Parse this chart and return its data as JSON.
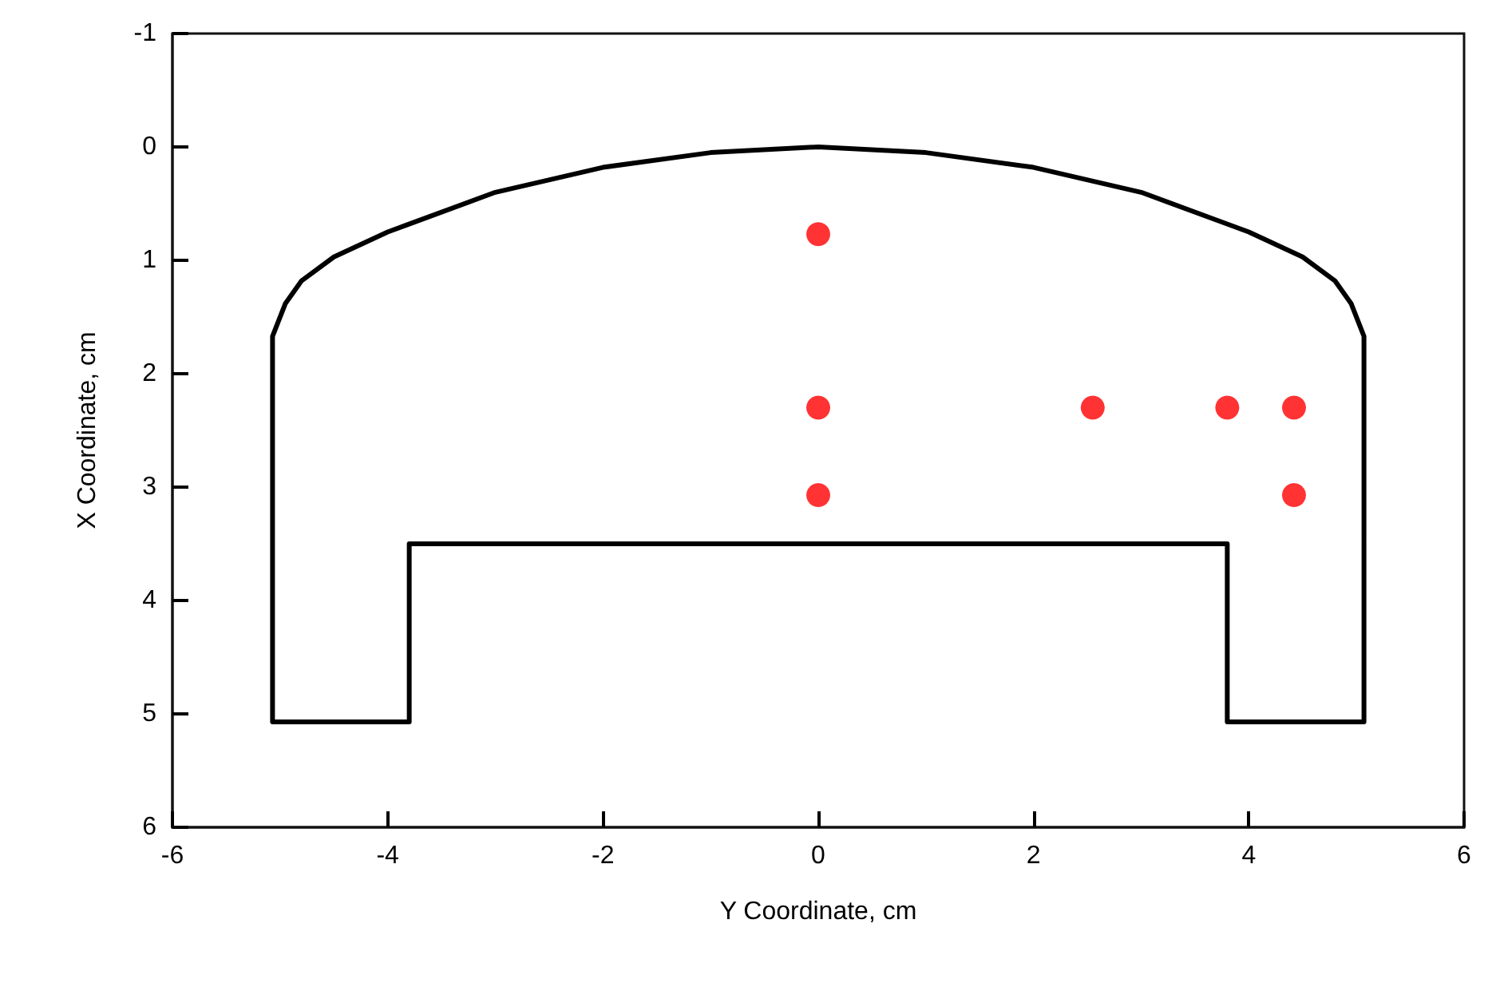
{
  "chart_data": {
    "type": "scatter",
    "xlabel": "Y Coordinate, cm",
    "ylabel": "X Coordinate, cm",
    "xlim": [
      -6,
      6
    ],
    "xticks": [
      -6,
      -4,
      -2,
      0,
      2,
      4,
      6
    ],
    "ylim": [
      6,
      -1
    ],
    "yticks": [
      -1,
      0,
      1,
      2,
      3,
      4,
      5,
      6
    ],
    "grid": false,
    "series": [
      {
        "type": "line",
        "color": "#000000",
        "marker": "none",
        "x": [
          -5.07,
          -5.07,
          -3.8,
          -3.8,
          3.8,
          3.8,
          5.07,
          5.07,
          null,
          -5.07,
          -4.95,
          -4.8,
          -4.5,
          -4,
          -3,
          -2,
          -1,
          0,
          1,
          2,
          3,
          4,
          4.5,
          4.8,
          4.95,
          5.07
        ],
        "values": [
          1.67,
          5.07,
          5.07,
          3.5,
          3.5,
          5.07,
          5.07,
          1.67,
          null,
          1.67,
          1.38,
          1.18,
          0.97,
          0.75,
          0.4,
          0.18,
          0.05,
          0,
          0.05,
          0.18,
          0.4,
          0.75,
          0.97,
          1.18,
          1.38,
          1.67
        ]
      },
      {
        "color": "#ff0000",
        "marker": "circle",
        "x": [
          0,
          0,
          0,
          2.55,
          3.8,
          4.42,
          4.42
        ],
        "values": [
          0.77,
          2.3,
          3.07,
          2.3,
          2.3,
          2.3,
          3.07
        ]
      }
    ]
  }
}
